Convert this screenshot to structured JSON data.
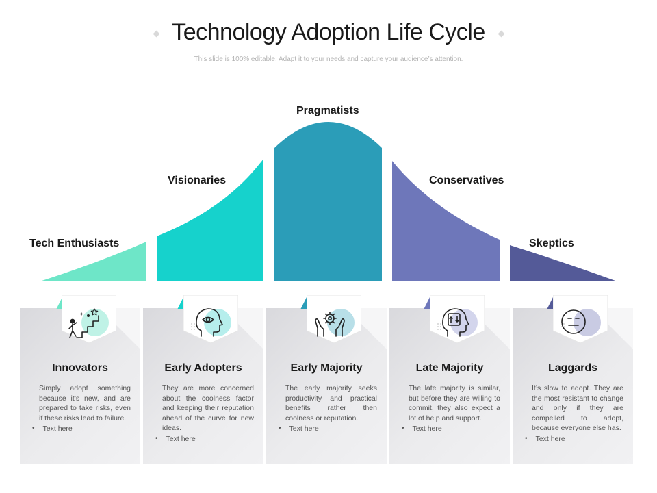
{
  "header": {
    "title": "Technology Adoption Life Cycle",
    "subtitle": "This slide is 100% editable. Adapt it to your needs and capture your audience’s attention."
  },
  "segments": [
    {
      "label": "Tech Enthusiasts",
      "color": "#6ee6c8"
    },
    {
      "label": "Visionaries",
      "color": "#16d2cc"
    },
    {
      "label": "Pragmatists",
      "color": "#2b9db8"
    },
    {
      "label": "Conservatives",
      "color": "#6e77ba"
    },
    {
      "label": "Skeptics",
      "color": "#545a98"
    }
  ],
  "cards": [
    {
      "title": "Innovators",
      "icon": "staircase-climber-icon",
      "accent": "#bff2e6",
      "description": "Simply adopt something because it’s new, and are prepared to take risks, even if these risks lead to failure.",
      "bullet": "Text here"
    },
    {
      "title": "Early Adopters",
      "icon": "head-eye-icon",
      "accent": "#b6eeec",
      "description": "They are more concerned about the coolness factor and keeping their reputation ahead of the curve for new ideas.",
      "bullet": "Text here"
    },
    {
      "title": "Early Majority",
      "icon": "hands-gear-icon",
      "accent": "#b8dfe8",
      "description": "The early majority seeks productivity and practical benefits rather then coolness or reputation.",
      "bullet": "Text here"
    },
    {
      "title": "Late Majority",
      "icon": "head-exchange-icon",
      "accent": "#d3d5ec",
      "description": "The late majority is similar, but before they are willing to commit, they also expect a lot of help and support.",
      "bullet": "Text here"
    },
    {
      "title": "Laggards",
      "icon": "neutral-face-icon",
      "accent": "#c9cbe3",
      "description": "It’s slow to adopt. They are the most resistant to change and only if they are compelled to adopt, because everyone else has.",
      "bullet": "Text here"
    }
  ]
}
